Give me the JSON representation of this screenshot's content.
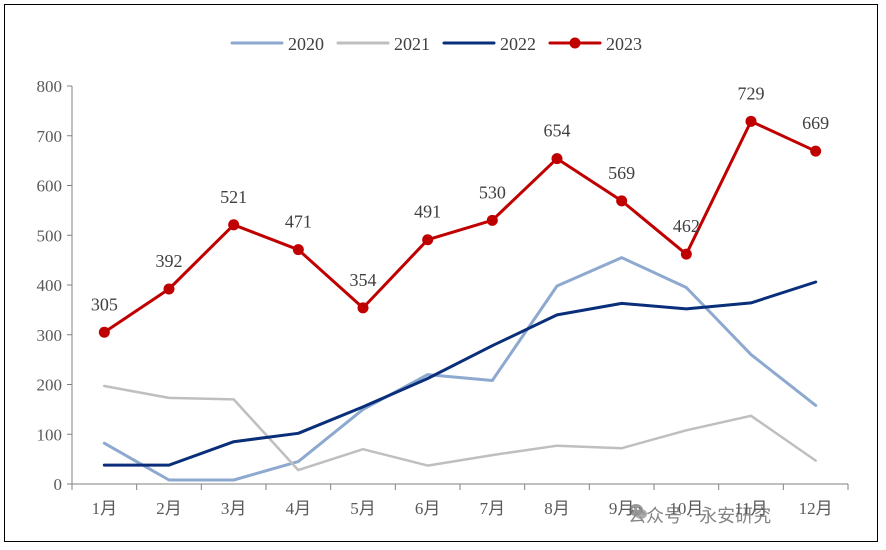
{
  "chart_data": {
    "type": "line",
    "title": "",
    "xlabel": "",
    "ylabel": "",
    "categories": [
      "1月",
      "2月",
      "3月",
      "4月",
      "5月",
      "6月",
      "7月",
      "8月",
      "9月",
      "10月",
      "11月",
      "12月"
    ],
    "ylim": [
      0,
      800
    ],
    "yticks": [
      0,
      100,
      200,
      300,
      400,
      500,
      600,
      700,
      800
    ],
    "legend_position": "top-center",
    "grid": false,
    "series": [
      {
        "name": "2020",
        "color": "#8EA9CF",
        "markers": false,
        "labels": false,
        "values": [
          82,
          8,
          8,
          45,
          150,
          220,
          208,
          398,
          455,
          395,
          260,
          158
        ]
      },
      {
        "name": "2021",
        "color": "#BFBFBF",
        "markers": false,
        "labels": false,
        "values": [
          197,
          173,
          170,
          28,
          70,
          37,
          58,
          77,
          72,
          108,
          137,
          47
        ]
      },
      {
        "name": "2022",
        "color": "#0A2F7A",
        "markers": false,
        "labels": false,
        "values": [
          38,
          38,
          85,
          102,
          155,
          212,
          278,
          340,
          363,
          352,
          364,
          406
        ]
      },
      {
        "name": "2023",
        "color": "#C00000",
        "markers": true,
        "labels": true,
        "values": [
          305,
          392,
          521,
          471,
          354,
          491,
          530,
          654,
          569,
          462,
          729,
          669
        ]
      }
    ]
  },
  "watermark": {
    "text": "公众号 · 永安研究",
    "icon": "wechat-icon"
  }
}
